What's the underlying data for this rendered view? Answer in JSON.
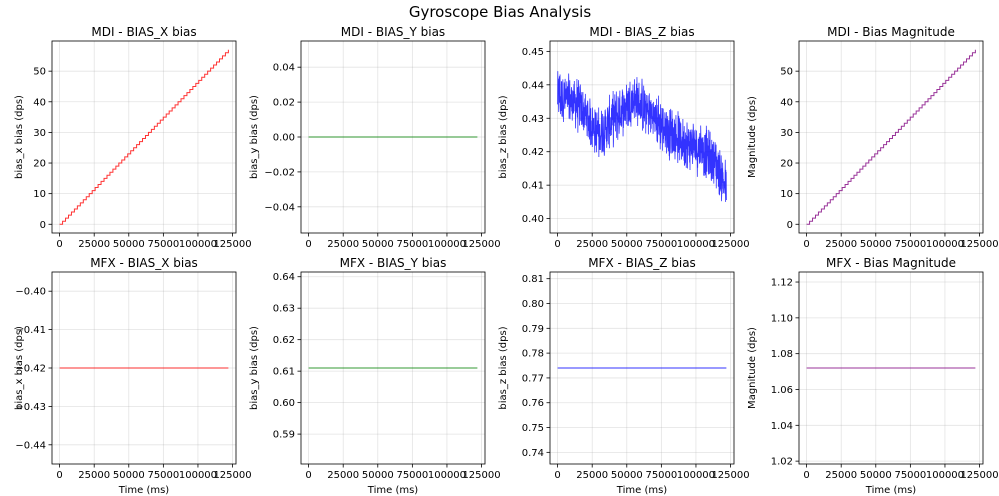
{
  "figure": {
    "title": "Gyroscope Bias Analysis"
  },
  "chart_data": [
    {
      "type": "line",
      "name": "mdi-bias-x",
      "title": "MDI - BIAS_X bias",
      "xlabel": "",
      "ylabel": "bias_x bias (dps)",
      "color": "#ff0000",
      "pattern": "staircase",
      "x": [
        0,
        122000
      ],
      "y": [
        0,
        57
      ],
      "xlim": [
        -5500,
        127500
      ],
      "ylim": [
        -2.85,
        59.85
      ],
      "xticks": [
        0,
        25000,
        50000,
        75000,
        100000,
        125000
      ],
      "xtick_labels": [
        "0",
        "25000",
        "50000",
        "75000",
        "100000",
        "125000"
      ],
      "yticks": [
        0,
        10,
        20,
        30,
        40,
        50
      ],
      "ytick_labels": [
        "0",
        "10",
        "20",
        "30",
        "40",
        "50"
      ]
    },
    {
      "type": "line",
      "name": "mdi-bias-y",
      "title": "MDI - BIAS_Y bias",
      "xlabel": "",
      "ylabel": "bias_y bias (dps)",
      "color": "#008000",
      "pattern": "constant",
      "x": [
        0,
        122000
      ],
      "y": [
        0,
        0
      ],
      "xlim": [
        -5500,
        127500
      ],
      "ylim": [
        -0.055,
        0.055
      ],
      "xticks": [
        0,
        25000,
        50000,
        75000,
        100000,
        125000
      ],
      "xtick_labels": [
        "0",
        "25000",
        "50000",
        "75000",
        "100000",
        "125000"
      ],
      "yticks": [
        -0.04,
        -0.02,
        0.0,
        0.02,
        0.04
      ],
      "ytick_labels": [
        "−0.04",
        "−0.02",
        "0.00",
        "0.02",
        "0.04"
      ]
    },
    {
      "type": "line",
      "name": "mdi-bias-z",
      "title": "MDI - BIAS_Z bias",
      "xlabel": "",
      "ylabel": "bias_z bias (dps)",
      "color": "#0000ff",
      "pattern": "noisy",
      "x": [
        0,
        15000,
        30000,
        45000,
        55000,
        65000,
        80000,
        95000,
        105000,
        115000,
        122000
      ],
      "y": [
        0.437,
        0.434,
        0.425,
        0.432,
        0.436,
        0.432,
        0.426,
        0.422,
        0.421,
        0.416,
        0.409
      ],
      "noise_amplitude": 0.0065,
      "xlim": [
        -5500,
        127500
      ],
      "ylim": [
        0.3957,
        0.4531
      ],
      "xticks": [
        0,
        25000,
        50000,
        75000,
        100000,
        125000
      ],
      "xtick_labels": [
        "0",
        "25000",
        "50000",
        "75000",
        "100000",
        "125000"
      ],
      "yticks": [
        0.4,
        0.41,
        0.42,
        0.43,
        0.44,
        0.45
      ],
      "ytick_labels": [
        "0.40",
        "0.41",
        "0.42",
        "0.43",
        "0.44",
        "0.45"
      ]
    },
    {
      "type": "line",
      "name": "mdi-bias-magnitude",
      "title": "MDI - Bias Magnitude",
      "xlabel": "",
      "ylabel": "Magnitude (dps)",
      "color": "#800080",
      "pattern": "staircase",
      "x": [
        0,
        122000
      ],
      "y": [
        0,
        57
      ],
      "xlim": [
        -5500,
        127500
      ],
      "ylim": [
        -2.85,
        59.85
      ],
      "xticks": [
        0,
        25000,
        50000,
        75000,
        100000,
        125000
      ],
      "xtick_labels": [
        "0",
        "25000",
        "50000",
        "75000",
        "100000",
        "125000"
      ],
      "yticks": [
        0,
        10,
        20,
        30,
        40,
        50
      ],
      "ytick_labels": [
        "0",
        "10",
        "20",
        "30",
        "40",
        "50"
      ]
    },
    {
      "type": "line",
      "name": "mfx-bias-x",
      "title": "MFX - BIAS_X bias",
      "xlabel": "Time (ms)",
      "ylabel": "bias_x bias (dps)",
      "color": "#ff0000",
      "pattern": "constant",
      "x": [
        0,
        122000
      ],
      "y": [
        -0.42,
        -0.42
      ],
      "xlim": [
        -5500,
        127500
      ],
      "ylim": [
        -0.445,
        -0.395
      ],
      "xticks": [
        0,
        25000,
        50000,
        75000,
        100000,
        125000
      ],
      "xtick_labels": [
        "0",
        "25000",
        "50000",
        "75000",
        "100000",
        "125000"
      ],
      "yticks": [
        -0.44,
        -0.43,
        -0.42,
        -0.41,
        -0.4
      ],
      "ytick_labels": [
        "−0.44",
        "−0.43",
        "−0.42",
        "−0.41",
        "−0.40"
      ]
    },
    {
      "type": "line",
      "name": "mfx-bias-y",
      "title": "MFX - BIAS_Y bias",
      "xlabel": "Time (ms)",
      "ylabel": "bias_y bias (dps)",
      "color": "#008000",
      "pattern": "constant",
      "x": [
        0,
        122000
      ],
      "y": [
        0.611,
        0.611
      ],
      "xlim": [
        -5500,
        127500
      ],
      "ylim": [
        0.5805,
        0.6415
      ],
      "xticks": [
        0,
        25000,
        50000,
        75000,
        100000,
        125000
      ],
      "xtick_labels": [
        "0",
        "25000",
        "50000",
        "75000",
        "100000",
        "125000"
      ],
      "yticks": [
        0.59,
        0.6,
        0.61,
        0.62,
        0.63,
        0.64
      ],
      "ytick_labels": [
        "0.59",
        "0.60",
        "0.61",
        "0.62",
        "0.63",
        "0.64"
      ]
    },
    {
      "type": "line",
      "name": "mfx-bias-z",
      "title": "MFX - BIAS_Z bias",
      "xlabel": "Time (ms)",
      "ylabel": "bias_z bias (dps)",
      "color": "#0000ff",
      "pattern": "constant",
      "x": [
        0,
        122000
      ],
      "y": [
        0.774,
        0.774
      ],
      "xlim": [
        -5500,
        127500
      ],
      "ylim": [
        0.7353,
        0.8127
      ],
      "xticks": [
        0,
        25000,
        50000,
        75000,
        100000,
        125000
      ],
      "xtick_labels": [
        "0",
        "25000",
        "50000",
        "75000",
        "100000",
        "125000"
      ],
      "yticks": [
        0.74,
        0.75,
        0.76,
        0.77,
        0.78,
        0.79,
        0.8,
        0.81
      ],
      "ytick_labels": [
        "0.74",
        "0.75",
        "0.76",
        "0.77",
        "0.78",
        "0.79",
        "0.80",
        "0.81"
      ]
    },
    {
      "type": "line",
      "name": "mfx-bias-magnitude",
      "title": "MFX - Bias Magnitude",
      "xlabel": "Time (ms)",
      "ylabel": "Magnitude (dps)",
      "color": "#800080",
      "pattern": "constant",
      "x": [
        0,
        122000
      ],
      "y": [
        1.072,
        1.072
      ],
      "xlim": [
        -5500,
        127500
      ],
      "ylim": [
        1.0184,
        1.1256
      ],
      "xticks": [
        0,
        25000,
        50000,
        75000,
        100000,
        125000
      ],
      "xtick_labels": [
        "0",
        "25000",
        "50000",
        "75000",
        "100000",
        "125000"
      ],
      "yticks": [
        1.02,
        1.04,
        1.06,
        1.08,
        1.1,
        1.12
      ],
      "ytick_labels": [
        "1.02",
        "1.04",
        "1.06",
        "1.08",
        "1.10",
        "1.12"
      ]
    }
  ]
}
